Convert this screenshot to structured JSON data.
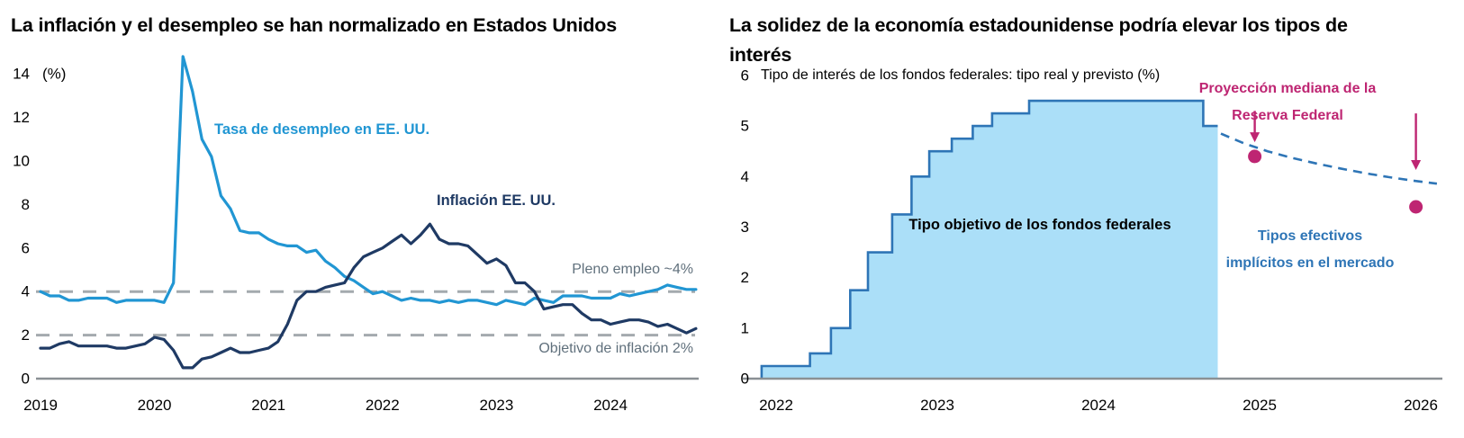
{
  "page": {
    "background": "#ffffff"
  },
  "chart_data": [
    {
      "id": "left",
      "type": "line",
      "title": "La inflación y el desempleo se han normalizado en Estados Unidos",
      "unit_label": "(%)",
      "xlim": [
        2018.95,
        2024.95
      ],
      "ylim": [
        0,
        14
      ],
      "yticks": [
        0,
        2,
        4,
        6,
        8,
        10,
        12,
        14
      ],
      "xticks": [
        2019,
        2020,
        2021,
        2022,
        2023,
        2024
      ],
      "grid": false,
      "legend_position": "inline-labels",
      "reference_lines": [
        {
          "y": 4,
          "label": "Pleno empleo ~4%",
          "color": "#A4AAAE",
          "label_color": "#60707C"
        },
        {
          "y": 2,
          "label": "Objetivo de inflación 2%",
          "color": "#A4AAAE",
          "label_color": "#60707C"
        }
      ],
      "series": [
        {
          "name": "Tasa de desempleo en EE. UU.",
          "type": "line",
          "color": "#2196D3",
          "x_start": 2019.0,
          "x_step": 0.083333,
          "values": [
            4.0,
            3.8,
            3.8,
            3.6,
            3.6,
            3.7,
            3.7,
            3.7,
            3.5,
            3.6,
            3.6,
            3.6,
            3.6,
            3.5,
            4.4,
            14.8,
            13.2,
            11.0,
            10.2,
            8.4,
            7.8,
            6.8,
            6.7,
            6.7,
            6.4,
            6.2,
            6.1,
            6.1,
            5.8,
            5.9,
            5.4,
            5.1,
            4.7,
            4.5,
            4.2,
            3.9,
            4.0,
            3.8,
            3.6,
            3.7,
            3.6,
            3.6,
            3.5,
            3.6,
            3.5,
            3.6,
            3.6,
            3.5,
            3.4,
            3.6,
            3.5,
            3.4,
            3.7,
            3.6,
            3.5,
            3.8,
            3.8,
            3.8,
            3.7,
            3.7,
            3.7,
            3.9,
            3.8,
            3.9,
            4.0,
            4.1,
            4.3,
            4.2,
            4.1,
            4.1
          ]
        },
        {
          "name": "Inflación EE. UU.",
          "type": "line",
          "color": "#1F3A64",
          "x_start": 2019.0,
          "x_step": 0.083333,
          "values": [
            1.4,
            1.4,
            1.6,
            1.7,
            1.5,
            1.5,
            1.5,
            1.5,
            1.4,
            1.4,
            1.5,
            1.6,
            1.9,
            1.8,
            1.3,
            0.5,
            0.5,
            0.9,
            1.0,
            1.2,
            1.4,
            1.2,
            1.2,
            1.3,
            1.4,
            1.7,
            2.5,
            3.6,
            4.0,
            4.0,
            4.2,
            4.3,
            4.4,
            5.1,
            5.6,
            5.8,
            6.0,
            6.3,
            6.6,
            6.2,
            6.6,
            7.1,
            6.4,
            6.2,
            6.2,
            6.1,
            5.7,
            5.3,
            5.5,
            5.2,
            4.4,
            4.4,
            4.0,
            3.2,
            3.3,
            3.4,
            3.4,
            3.0,
            2.7,
            2.7,
            2.5,
            2.6,
            2.7,
            2.7,
            2.6,
            2.4,
            2.5,
            2.3,
            2.1,
            2.3
          ]
        }
      ]
    },
    {
      "id": "right",
      "type": "area",
      "title": "La solidez de la economía estadounidense podría elevar los tipos de interés",
      "subtitle": "Tipo de interés de los fondos federales: tipo real y previsto (%)",
      "xlim": [
        2021.9,
        2026.15
      ],
      "ylim": [
        0,
        6
      ],
      "yticks": [
        0,
        1,
        2,
        3,
        4,
        5,
        6
      ],
      "xticks": [
        2022,
        2023,
        2024,
        2025,
        2026
      ],
      "grid": false,
      "series": [
        {
          "name": "Tipo objetivo de los fondos federales",
          "type": "step_area",
          "fill": "#ABDFF8",
          "stroke": "#2E75B6",
          "points": [
            [
              2021.91,
              0.25
            ],
            [
              2022.21,
              0.5
            ],
            [
              2022.34,
              1.0
            ],
            [
              2022.46,
              1.75
            ],
            [
              2022.57,
              2.5
            ],
            [
              2022.72,
              3.25
            ],
            [
              2022.84,
              4.0
            ],
            [
              2022.95,
              4.5
            ],
            [
              2023.09,
              4.75
            ],
            [
              2023.22,
              5.0
            ],
            [
              2023.34,
              5.25
            ],
            [
              2023.57,
              5.5
            ],
            [
              2024.65,
              5.0
            ]
          ],
          "end_x": 2024.74
        },
        {
          "name": "Tipos efectivos implícitos en el mercado",
          "type": "dashed_line",
          "color": "#2E75B6",
          "points": [
            [
              2024.76,
              4.85
            ],
            [
              2024.9,
              4.66
            ],
            [
              2025.05,
              4.5
            ],
            [
              2025.2,
              4.37
            ],
            [
              2025.35,
              4.26
            ],
            [
              2025.5,
              4.16
            ],
            [
              2025.65,
              4.07
            ],
            [
              2025.8,
              3.99
            ],
            [
              2025.95,
              3.92
            ],
            [
              2026.1,
              3.86
            ]
          ]
        },
        {
          "name": "Proyección mediana de la Reserva Federal",
          "type": "points",
          "color": "#BE2572",
          "points": [
            [
              2024.97,
              4.4
            ],
            [
              2025.97,
              3.4
            ]
          ]
        }
      ],
      "arrows": [
        {
          "x": 2024.97,
          "y_from": 5.3,
          "y_to": 4.68
        },
        {
          "x": 2025.97,
          "y_from": 5.25,
          "y_to": 4.13
        }
      ],
      "annotations": {
        "target_label": {
          "text": "Tipo objetivo de los fondos federales"
        },
        "projection_label": {
          "line1": "Proyección mediana de la",
          "line2": "Reserva Federal"
        },
        "market_label": {
          "line1": "Tipos efectivos",
          "line2": "implícitos en el mercado"
        }
      }
    }
  ]
}
